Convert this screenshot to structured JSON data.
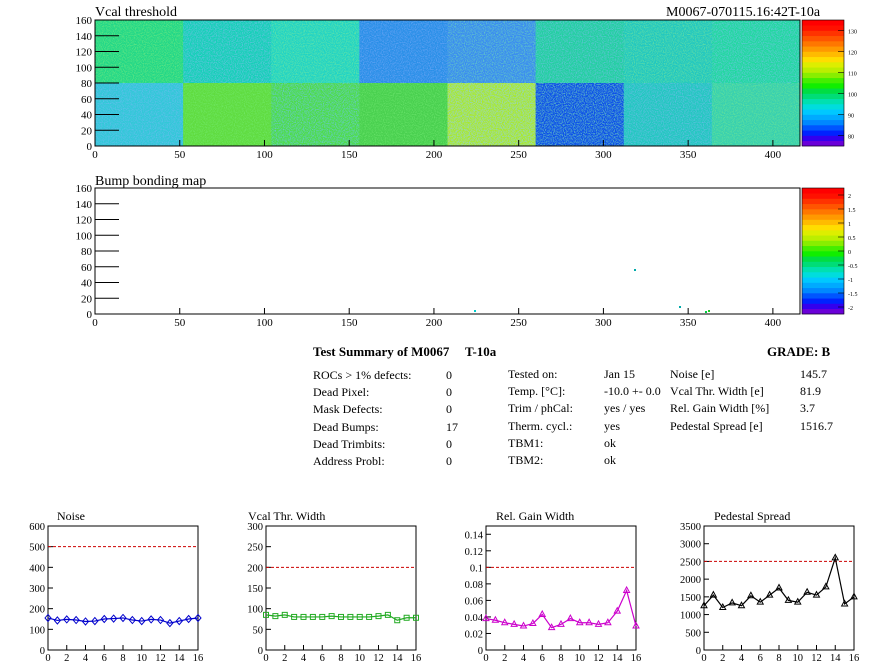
{
  "header": {
    "vcal_title": "Vcal threshold",
    "run_id": "M0067-070115.16:42T-10a",
    "bump_title": "Bump bonding map"
  },
  "maps": {
    "x_ticks": [
      "0",
      "50",
      "100",
      "150",
      "200",
      "250",
      "300",
      "350",
      "400"
    ],
    "y_ticks": [
      "0",
      "20",
      "40",
      "60",
      "80",
      "100",
      "120",
      "140",
      "160"
    ],
    "vcal_scale": [
      "80",
      "90",
      "100",
      "110",
      "120",
      "130"
    ],
    "bump_scale": [
      "-2",
      "-1.5",
      "-1",
      "-0.5",
      "0",
      "0.5",
      "1",
      "1.5",
      "2"
    ]
  },
  "summary": {
    "title": "Test Summary of M0067",
    "temp_tag": "T-10a",
    "grade": "GRADE:  B",
    "rows_left": [
      {
        "label": "ROCs > 1% defects:",
        "value": "0"
      },
      {
        "label": "Dead Pixel:",
        "value": "0"
      },
      {
        "label": "Mask Defects:",
        "value": "0"
      },
      {
        "label": "Dead Bumps:",
        "value": "17"
      },
      {
        "label": "Dead Trimbits:",
        "value": "0"
      },
      {
        "label": "Address Probl:",
        "value": "0"
      }
    ],
    "rows_mid": [
      {
        "label": "Tested on:",
        "value": "Jan 15"
      },
      {
        "label": "Temp. [°C]:",
        "value": "-10.0 +- 0.0"
      },
      {
        "label": "Trim / phCal:",
        "value": "yes / yes"
      },
      {
        "label": "Therm. cycl.:",
        "value": "yes"
      },
      {
        "label": "TBM1:",
        "value": "ok"
      },
      {
        "label": "TBM2:",
        "value": "ok"
      }
    ],
    "rows_right": [
      {
        "label": "Noise [e]",
        "value": "145.7"
      },
      {
        "label": "Vcal Thr. Width [e]",
        "value": "81.9"
      },
      {
        "label": "Rel. Gain Width [%]",
        "value": "3.7"
      },
      {
        "label": "Pedestal Spread [e]",
        "value": "1516.7"
      }
    ]
  },
  "chart_data": [
    {
      "type": "line",
      "title": "Noise",
      "color": "#0000cc",
      "marker": "diamond",
      "x": [
        0,
        1,
        2,
        3,
        4,
        5,
        6,
        7,
        8,
        9,
        10,
        11,
        12,
        13,
        14,
        15,
        16
      ],
      "values": [
        155,
        143,
        148,
        145,
        138,
        140,
        150,
        152,
        155,
        145,
        140,
        148,
        145,
        130,
        140,
        150,
        155
      ],
      "threshold": 500,
      "ylim": [
        0,
        600
      ],
      "yticks": [
        "0",
        "100",
        "200",
        "300",
        "400",
        "500",
        "600"
      ],
      "xticks": [
        "0",
        "2",
        "4",
        "6",
        "8",
        "10",
        "12",
        "14",
        "16"
      ]
    },
    {
      "type": "line",
      "title": "Vcal Thr. Width",
      "color": "#22aa22",
      "marker": "square",
      "x": [
        0,
        1,
        2,
        3,
        4,
        5,
        6,
        7,
        8,
        9,
        10,
        11,
        12,
        13,
        14,
        15,
        16
      ],
      "values": [
        85,
        82,
        85,
        80,
        80,
        80,
        80,
        82,
        80,
        80,
        80,
        80,
        82,
        85,
        72,
        78,
        78
      ],
      "threshold": 200,
      "ylim": [
        0,
        300
      ],
      "yticks": [
        "0",
        "50",
        "100",
        "150",
        "200",
        "250",
        "300"
      ],
      "xticks": [
        "0",
        "2",
        "4",
        "6",
        "8",
        "10",
        "12",
        "14",
        "16"
      ]
    },
    {
      "type": "line",
      "title": "Rel. Gain Width",
      "color": "#cc00cc",
      "marker": "triangle",
      "x": [
        0,
        1,
        2,
        3,
        4,
        5,
        6,
        7,
        8,
        9,
        10,
        11,
        12,
        13,
        14,
        15,
        16
      ],
      "values": [
        0.038,
        0.036,
        0.033,
        0.031,
        0.029,
        0.032,
        0.043,
        0.027,
        0.031,
        0.038,
        0.033,
        0.033,
        0.031,
        0.033,
        0.047,
        0.072,
        0.029
      ],
      "threshold": 0.1,
      "ylim": [
        0,
        0.15
      ],
      "yticks": [
        "0",
        "0.02",
        "0.04",
        "0.06",
        "0.08",
        "0.1",
        "0.12",
        "0.14"
      ],
      "xticks": [
        "0",
        "2",
        "4",
        "6",
        "8",
        "10",
        "12",
        "14",
        "16"
      ]
    },
    {
      "type": "line",
      "title": "Pedestal Spread",
      "color": "#000000",
      "marker": "triangle",
      "x": [
        0,
        1,
        2,
        3,
        4,
        5,
        6,
        7,
        8,
        9,
        10,
        11,
        12,
        13,
        14,
        15,
        16
      ],
      "values": [
        1250,
        1550,
        1200,
        1330,
        1250,
        1530,
        1350,
        1550,
        1750,
        1400,
        1350,
        1630,
        1550,
        1780,
        2600,
        1300,
        1500
      ],
      "threshold": 2500,
      "ylim": [
        0,
        3500
      ],
      "yticks": [
        "0",
        "500",
        "1000",
        "1500",
        "2000",
        "2500",
        "3000",
        "3500"
      ],
      "xticks": [
        "0",
        "2",
        "4",
        "6",
        "8",
        "10",
        "12",
        "14",
        "16"
      ]
    }
  ]
}
